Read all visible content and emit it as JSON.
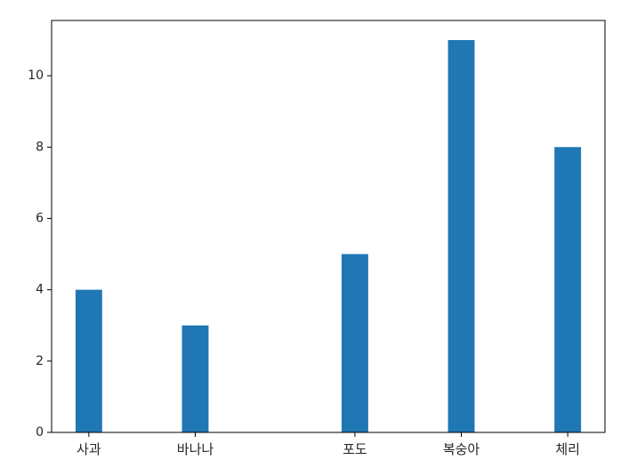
{
  "chart_data": {
    "type": "bar",
    "categories": [
      "사과",
      "바나나",
      "포도",
      "복숭아",
      "체리"
    ],
    "x": [
      0,
      2,
      5,
      7,
      9
    ],
    "values": [
      4,
      3,
      5,
      11,
      8
    ],
    "title": "",
    "xlabel": "",
    "ylabel": "",
    "ylim": [
      0,
      11.55
    ],
    "yticks": [
      0,
      2,
      4,
      6,
      8,
      10
    ],
    "bar_color": "#1f77b4",
    "grid": false,
    "legend": "none"
  }
}
